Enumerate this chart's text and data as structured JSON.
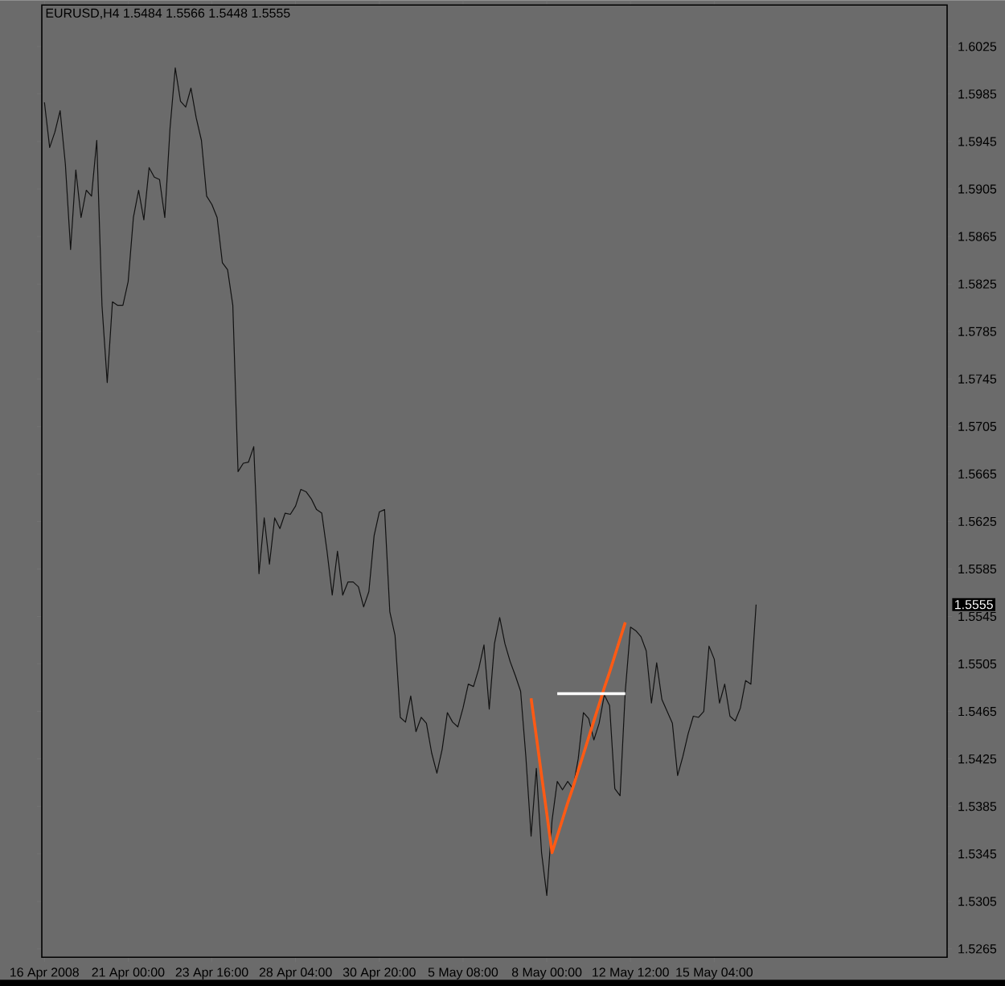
{
  "chart_data": {
    "type": "line",
    "title": "EURUSD,H4  1.5484 1.5566 1.5448 1.5555",
    "categories": [
      "16 Apr 2008",
      null,
      null,
      null,
      null,
      null,
      null,
      null,
      null,
      null,
      null,
      null,
      null,
      null,
      null,
      null,
      "21 Apr 00:00",
      null,
      null,
      null,
      null,
      null,
      null,
      null,
      null,
      null,
      null,
      null,
      null,
      null,
      null,
      null,
      "23 Apr 16:00",
      null,
      null,
      null,
      null,
      null,
      null,
      null,
      null,
      null,
      null,
      null,
      null,
      null,
      null,
      null,
      "28 Apr 04:00",
      null,
      null,
      null,
      null,
      null,
      null,
      null,
      null,
      null,
      null,
      null,
      null,
      null,
      null,
      null,
      "30 Apr 20:00",
      null,
      null,
      null,
      null,
      null,
      null,
      null,
      null,
      null,
      null,
      null,
      null,
      null,
      null,
      null,
      "5 May 08:00",
      null,
      null,
      null,
      null,
      null,
      null,
      null,
      null,
      null,
      null,
      null,
      null,
      null,
      null,
      null,
      "8 May 00:00",
      null,
      null,
      null,
      null,
      null,
      null,
      null,
      null,
      null,
      null,
      null,
      null,
      null,
      null,
      null,
      "12 May 12:00",
      null,
      null,
      null,
      null,
      null,
      null,
      null,
      null,
      null,
      null,
      null,
      null,
      null,
      null,
      null,
      "15 May 04:00",
      null,
      null,
      null,
      null,
      null,
      null,
      null,
      null,
      null,
      null,
      null,
      null,
      null,
      null,
      null,
      null,
      null,
      null,
      null,
      null,
      null,
      null,
      null,
      null,
      null,
      null,
      null,
      null,
      null,
      null,
      null,
      null,
      null,
      null,
      null,
      null,
      null,
      null,
      null,
      null,
      null,
      null,
      null,
      null
    ],
    "ylim": [
      1.5258,
      1.606
    ],
    "yticks": [
      1.5265,
      1.5305,
      1.5345,
      1.5385,
      1.5425,
      1.5465,
      1.5505,
      1.5545,
      1.5585,
      1.5625,
      1.5665,
      1.5705,
      1.5745,
      1.5785,
      1.5825,
      1.5865,
      1.5905,
      1.5945,
      1.5985,
      1.6025
    ],
    "annotations": [
      "1.5555"
    ],
    "series": [
      {
        "color": "#111111",
        "values": [
          1.5978,
          1.594,
          1.5953,
          1.5971,
          1.5926,
          1.5854,
          1.5921,
          1.5881,
          1.5904,
          1.5899,
          1.5946,
          1.5807,
          1.5742,
          1.581,
          1.5807,
          1.5807,
          1.5827,
          1.5881,
          1.5904,
          1.5879,
          1.5923,
          1.5915,
          1.5913,
          1.5881,
          1.5956,
          1.6007,
          1.5979,
          1.5974,
          1.599,
          1.5965,
          1.5946,
          1.5899,
          1.5892,
          1.5881,
          1.5843,
          1.5837,
          1.5807,
          1.5667,
          1.5674,
          1.5675,
          1.5688,
          1.5581,
          1.5628,
          1.5589,
          1.5628,
          1.5619,
          1.5632,
          1.5631,
          1.5638,
          1.5652,
          1.565,
          1.5644,
          1.5635,
          1.5632,
          1.56,
          1.5563,
          1.56,
          1.5563,
          1.5574,
          1.5574,
          1.557,
          1.5553,
          1.5566,
          1.5613,
          1.5633,
          1.5635,
          1.5549,
          1.5529,
          1.546,
          1.5456,
          1.5478,
          1.5448,
          1.546,
          1.5455,
          1.543,
          1.5413,
          1.5433,
          1.5464,
          1.5456,
          1.5452,
          1.5468,
          1.5488,
          1.5486,
          1.5501,
          1.5521,
          1.5467,
          1.5522,
          1.5544,
          1.5522,
          1.5507,
          1.5495,
          1.5482,
          1.5427,
          1.536,
          1.5417,
          1.5346,
          1.531,
          1.5373,
          1.5406,
          1.5399,
          1.5406,
          1.54,
          1.5425,
          1.5464,
          1.5459,
          1.5441,
          1.5455,
          1.5479,
          1.547,
          1.54,
          1.5394,
          1.5482,
          1.5536,
          1.5533,
          1.5528,
          1.5516,
          1.5472,
          1.5506,
          1.5475,
          1.5465,
          1.5455,
          1.5411,
          1.5427,
          1.5446,
          1.5461,
          1.546,
          1.5465,
          1.552,
          1.5509,
          1.5472,
          1.5488,
          1.5461,
          1.5457,
          1.5468,
          1.5491,
          1.5488,
          1.5555,
          null,
          null,
          null,
          null,
          null,
          null,
          null,
          null,
          null,
          null,
          null,
          null,
          null,
          null,
          null,
          null,
          null,
          null,
          null,
          null,
          null,
          null,
          null,
          null,
          null,
          null,
          null,
          null,
          null,
          null,
          null,
          null,
          null,
          null,
          null,
          null
        ]
      },
      {
        "color": "#ff5a14",
        "values": [
          null,
          null,
          null,
          null,
          null,
          null,
          null,
          null,
          null,
          null,
          null,
          null,
          null,
          null,
          null,
          null,
          null,
          null,
          null,
          null,
          null,
          null,
          null,
          null,
          null,
          null,
          null,
          null,
          null,
          null,
          null,
          null,
          null,
          null,
          null,
          null,
          null,
          null,
          null,
          null,
          null,
          null,
          null,
          null,
          null,
          null,
          null,
          null,
          null,
          null,
          null,
          null,
          null,
          null,
          null,
          null,
          null,
          null,
          null,
          null,
          null,
          null,
          null,
          null,
          null,
          null,
          null,
          null,
          null,
          null,
          null,
          null,
          null,
          null,
          null,
          null,
          null,
          null,
          null,
          null,
          null,
          null,
          null,
          null,
          null,
          null,
          null,
          null,
          null,
          null,
          null,
          null,
          null,
          1.5476,
          1.5444,
          1.5411,
          1.5379,
          1.5346,
          1.536,
          1.5374,
          1.5388,
          1.5401,
          1.5415,
          1.5429,
          1.5443,
          1.5457,
          1.5471,
          1.5485,
          1.5498,
          1.5512,
          1.5526,
          1.554,
          null,
          null,
          null,
          null,
          null,
          null,
          null,
          null,
          null,
          null,
          null,
          null,
          null,
          null,
          null,
          null,
          null,
          null,
          null,
          null,
          null,
          null,
          null,
          null,
          null,
          null,
          null,
          null,
          null,
          null,
          null,
          null,
          null,
          null,
          null,
          null,
          null,
          null,
          null,
          null,
          null,
          null,
          null,
          null,
          null,
          null,
          null,
          null,
          null,
          null,
          null,
          null,
          null,
          null,
          null,
          null,
          null,
          null,
          null,
          null,
          null
        ]
      },
      {
        "color": "#ffffff",
        "values": [
          null,
          null,
          null,
          null,
          null,
          null,
          null,
          null,
          null,
          null,
          null,
          null,
          null,
          null,
          null,
          null,
          null,
          null,
          null,
          null,
          null,
          null,
          null,
          null,
          null,
          null,
          null,
          null,
          null,
          null,
          null,
          null,
          null,
          null,
          null,
          null,
          null,
          null,
          null,
          null,
          null,
          null,
          null,
          null,
          null,
          null,
          null,
          null,
          null,
          null,
          null,
          null,
          null,
          null,
          null,
          null,
          null,
          null,
          null,
          null,
          null,
          null,
          null,
          null,
          null,
          null,
          null,
          null,
          null,
          null,
          null,
          null,
          null,
          null,
          null,
          null,
          null,
          null,
          null,
          null,
          null,
          null,
          null,
          null,
          null,
          null,
          null,
          null,
          null,
          null,
          null,
          null,
          null,
          null,
          null,
          null,
          null,
          null,
          1.548,
          1.548,
          1.548,
          1.548,
          1.548,
          1.548,
          1.548,
          1.548,
          1.548,
          1.548,
          1.548,
          1.548,
          1.548,
          1.548,
          null,
          null,
          null,
          null,
          null,
          null,
          null,
          null,
          null,
          null,
          null,
          null,
          null,
          null,
          null,
          null,
          null,
          null,
          null,
          null,
          null,
          null,
          null,
          null,
          null,
          null,
          null,
          null,
          null,
          null,
          null,
          null,
          null,
          null,
          null,
          null,
          null,
          null,
          null,
          null,
          null,
          null,
          null,
          null,
          null,
          null,
          null,
          null,
          null,
          null,
          null,
          null,
          null,
          null,
          null,
          null,
          null,
          null,
          null,
          null,
          null
        ]
      }
    ]
  }
}
